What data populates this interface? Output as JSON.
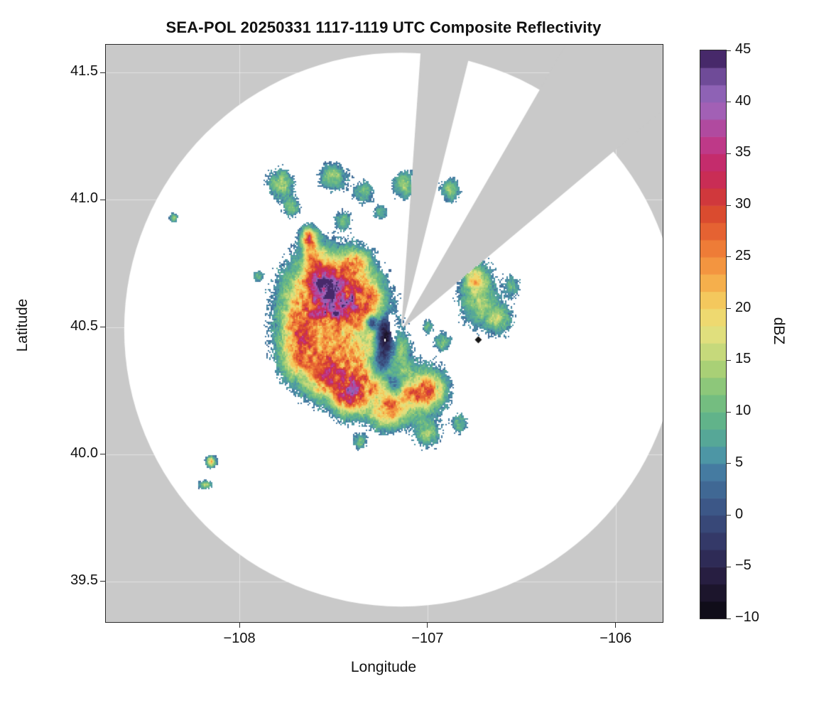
{
  "title": "SEA-POL 20250331 1117-1119 UTC Composite Reflectivity",
  "axes": {
    "x": {
      "label": "Longitude",
      "ticks": [
        -108,
        -107,
        -106
      ],
      "tick_labels": [
        "−108",
        "−107",
        "−106"
      ]
    },
    "y": {
      "label": "Latitude",
      "ticks": [
        39.5,
        40.0,
        40.5,
        41.0,
        41.5
      ],
      "tick_labels": [
        "39.5",
        "40.0",
        "40.5",
        "41.0",
        "41.5"
      ]
    }
  },
  "colorbar": {
    "label": "dBZ",
    "min": -10,
    "max": 45,
    "bands": 33,
    "ticks": [
      45,
      40,
      35,
      30,
      25,
      20,
      15,
      10,
      5,
      0,
      -5,
      -10
    ],
    "tick_labels": [
      "45",
      "40",
      "35",
      "30",
      "25",
      "20",
      "15",
      "10",
      "5",
      "0",
      "−5",
      "−10"
    ],
    "stops": [
      [
        -10,
        "#0a0a0f"
      ],
      [
        -8,
        "#181226"
      ],
      [
        -6,
        "#261d3f"
      ],
      [
        -4,
        "#2f2c58"
      ],
      [
        -2,
        "#353d6d"
      ],
      [
        0,
        "#3a4f80"
      ],
      [
        2,
        "#3e6390"
      ],
      [
        4,
        "#44789f"
      ],
      [
        5,
        "#4a88ab"
      ],
      [
        6,
        "#4e99a4"
      ],
      [
        8,
        "#58ab92"
      ],
      [
        10,
        "#68b884"
      ],
      [
        12,
        "#85c47b"
      ],
      [
        14,
        "#a6cf76"
      ],
      [
        16,
        "#c9da7b"
      ],
      [
        18,
        "#e7e07e"
      ],
      [
        20,
        "#f3d466"
      ],
      [
        22,
        "#f6b750"
      ],
      [
        24,
        "#f39841"
      ],
      [
        26,
        "#ee7936"
      ],
      [
        28,
        "#e25a30"
      ],
      [
        30,
        "#d4402f"
      ],
      [
        32,
        "#ca2e4e"
      ],
      [
        34,
        "#c52b69"
      ],
      [
        36,
        "#bd3a8b"
      ],
      [
        38,
        "#ac4fa5"
      ],
      [
        40,
        "#9b6cc0"
      ],
      [
        42,
        "#7b55a5"
      ],
      [
        44,
        "#4c2d72"
      ],
      [
        45,
        "#2c1445"
      ]
    ]
  },
  "chart_data": {
    "type": "heatmap",
    "subtype": "radar-ppi-composite-reflectivity",
    "title": "SEA-POL 20250331 1117-1119 UTC Composite Reflectivity",
    "xlabel": "Longitude",
    "ylabel": "Latitude",
    "xlim": [
      -108.71,
      -105.75
    ],
    "ylim": [
      39.34,
      41.61
    ],
    "value_units": "dBZ",
    "value_range": [
      -10,
      45
    ],
    "background": {
      "outside": "#c9c9c9",
      "inside": "#ffffff",
      "grid": "rgba(255,255,255,0.45)"
    },
    "radar": {
      "center_lon": -107.14,
      "center_lat": 40.49,
      "radius_px": 390,
      "blocked_sectors_deg": [
        [
          4,
          14
        ],
        [
          30,
          50
        ]
      ]
    },
    "marker": {
      "lon": -106.73,
      "lat": 40.45,
      "shape": "diamond",
      "color": "#151515"
    },
    "echo_cell_format": [
      "lon",
      "lat",
      "sigma_lon_deg",
      "sigma_lat_deg",
      "peak_dbz_amplitude"
    ],
    "echo_cells": [
      [
        -107.52,
        40.67,
        0.13,
        0.09,
        27
      ],
      [
        -107.66,
        40.52,
        0.1,
        0.11,
        20
      ],
      [
        -107.45,
        40.44,
        0.13,
        0.12,
        18
      ],
      [
        -107.32,
        40.6,
        0.07,
        0.07,
        20
      ],
      [
        -107.48,
        40.58,
        0.06,
        0.05,
        16
      ],
      [
        -107.55,
        40.68,
        0.05,
        0.04,
        16
      ],
      [
        -107.3,
        40.29,
        0.14,
        0.07,
        24
      ],
      [
        -107.1,
        40.23,
        0.1,
        0.06,
        24
      ],
      [
        -106.97,
        40.26,
        0.05,
        0.05,
        16
      ],
      [
        -107.55,
        40.31,
        0.07,
        0.06,
        20
      ],
      [
        -107.7,
        40.4,
        0.06,
        0.08,
        16
      ],
      [
        -107.42,
        40.22,
        0.06,
        0.05,
        22
      ],
      [
        -107.22,
        40.15,
        0.06,
        0.04,
        18
      ],
      [
        -107.38,
        40.75,
        0.05,
        0.04,
        18
      ],
      [
        -107.6,
        40.78,
        0.04,
        0.04,
        14
      ],
      [
        -107.24,
        40.44,
        0.08,
        0.1,
        10
      ],
      [
        -107.13,
        40.41,
        0.025,
        0.04,
        7
      ],
      [
        -107.23,
        40.46,
        0.035,
        0.07,
        -24
      ],
      [
        -107.26,
        40.34,
        0.05,
        0.045,
        -20
      ],
      [
        -107.17,
        40.27,
        0.045,
        0.035,
        -26
      ],
      [
        -107.3,
        40.52,
        0.022,
        0.022,
        -22
      ],
      [
        -107.78,
        41.06,
        0.045,
        0.04,
        16
      ],
      [
        -107.72,
        40.97,
        0.03,
        0.025,
        13
      ],
      [
        -107.5,
        41.09,
        0.05,
        0.035,
        15
      ],
      [
        -107.34,
        41.03,
        0.035,
        0.03,
        13
      ],
      [
        -107.12,
        41.06,
        0.045,
        0.035,
        15
      ],
      [
        -106.88,
        41.04,
        0.035,
        0.03,
        14
      ],
      [
        -107.63,
        40.85,
        0.03,
        0.03,
        26
      ],
      [
        -107.45,
        40.92,
        0.03,
        0.025,
        12
      ],
      [
        -108.35,
        40.93,
        0.015,
        0.012,
        15
      ],
      [
        -107.9,
        40.7,
        0.02,
        0.015,
        10
      ],
      [
        -107.25,
        40.95,
        0.025,
        0.02,
        11
      ],
      [
        -106.73,
        40.62,
        0.07,
        0.08,
        15
      ],
      [
        -106.62,
        40.53,
        0.05,
        0.04,
        13
      ],
      [
        -106.75,
        40.7,
        0.04,
        0.035,
        13
      ],
      [
        -106.55,
        40.66,
        0.03,
        0.03,
        10
      ],
      [
        -106.92,
        40.44,
        0.03,
        0.025,
        12
      ],
      [
        -107.0,
        40.5,
        0.02,
        0.02,
        10
      ],
      [
        -107.0,
        40.08,
        0.045,
        0.035,
        14
      ],
      [
        -106.83,
        40.12,
        0.03,
        0.025,
        12
      ],
      [
        -107.36,
        40.05,
        0.025,
        0.02,
        11
      ],
      [
        -108.15,
        39.97,
        0.018,
        0.015,
        24
      ],
      [
        -108.18,
        39.88,
        0.025,
        0.012,
        13
      ]
    ]
  }
}
